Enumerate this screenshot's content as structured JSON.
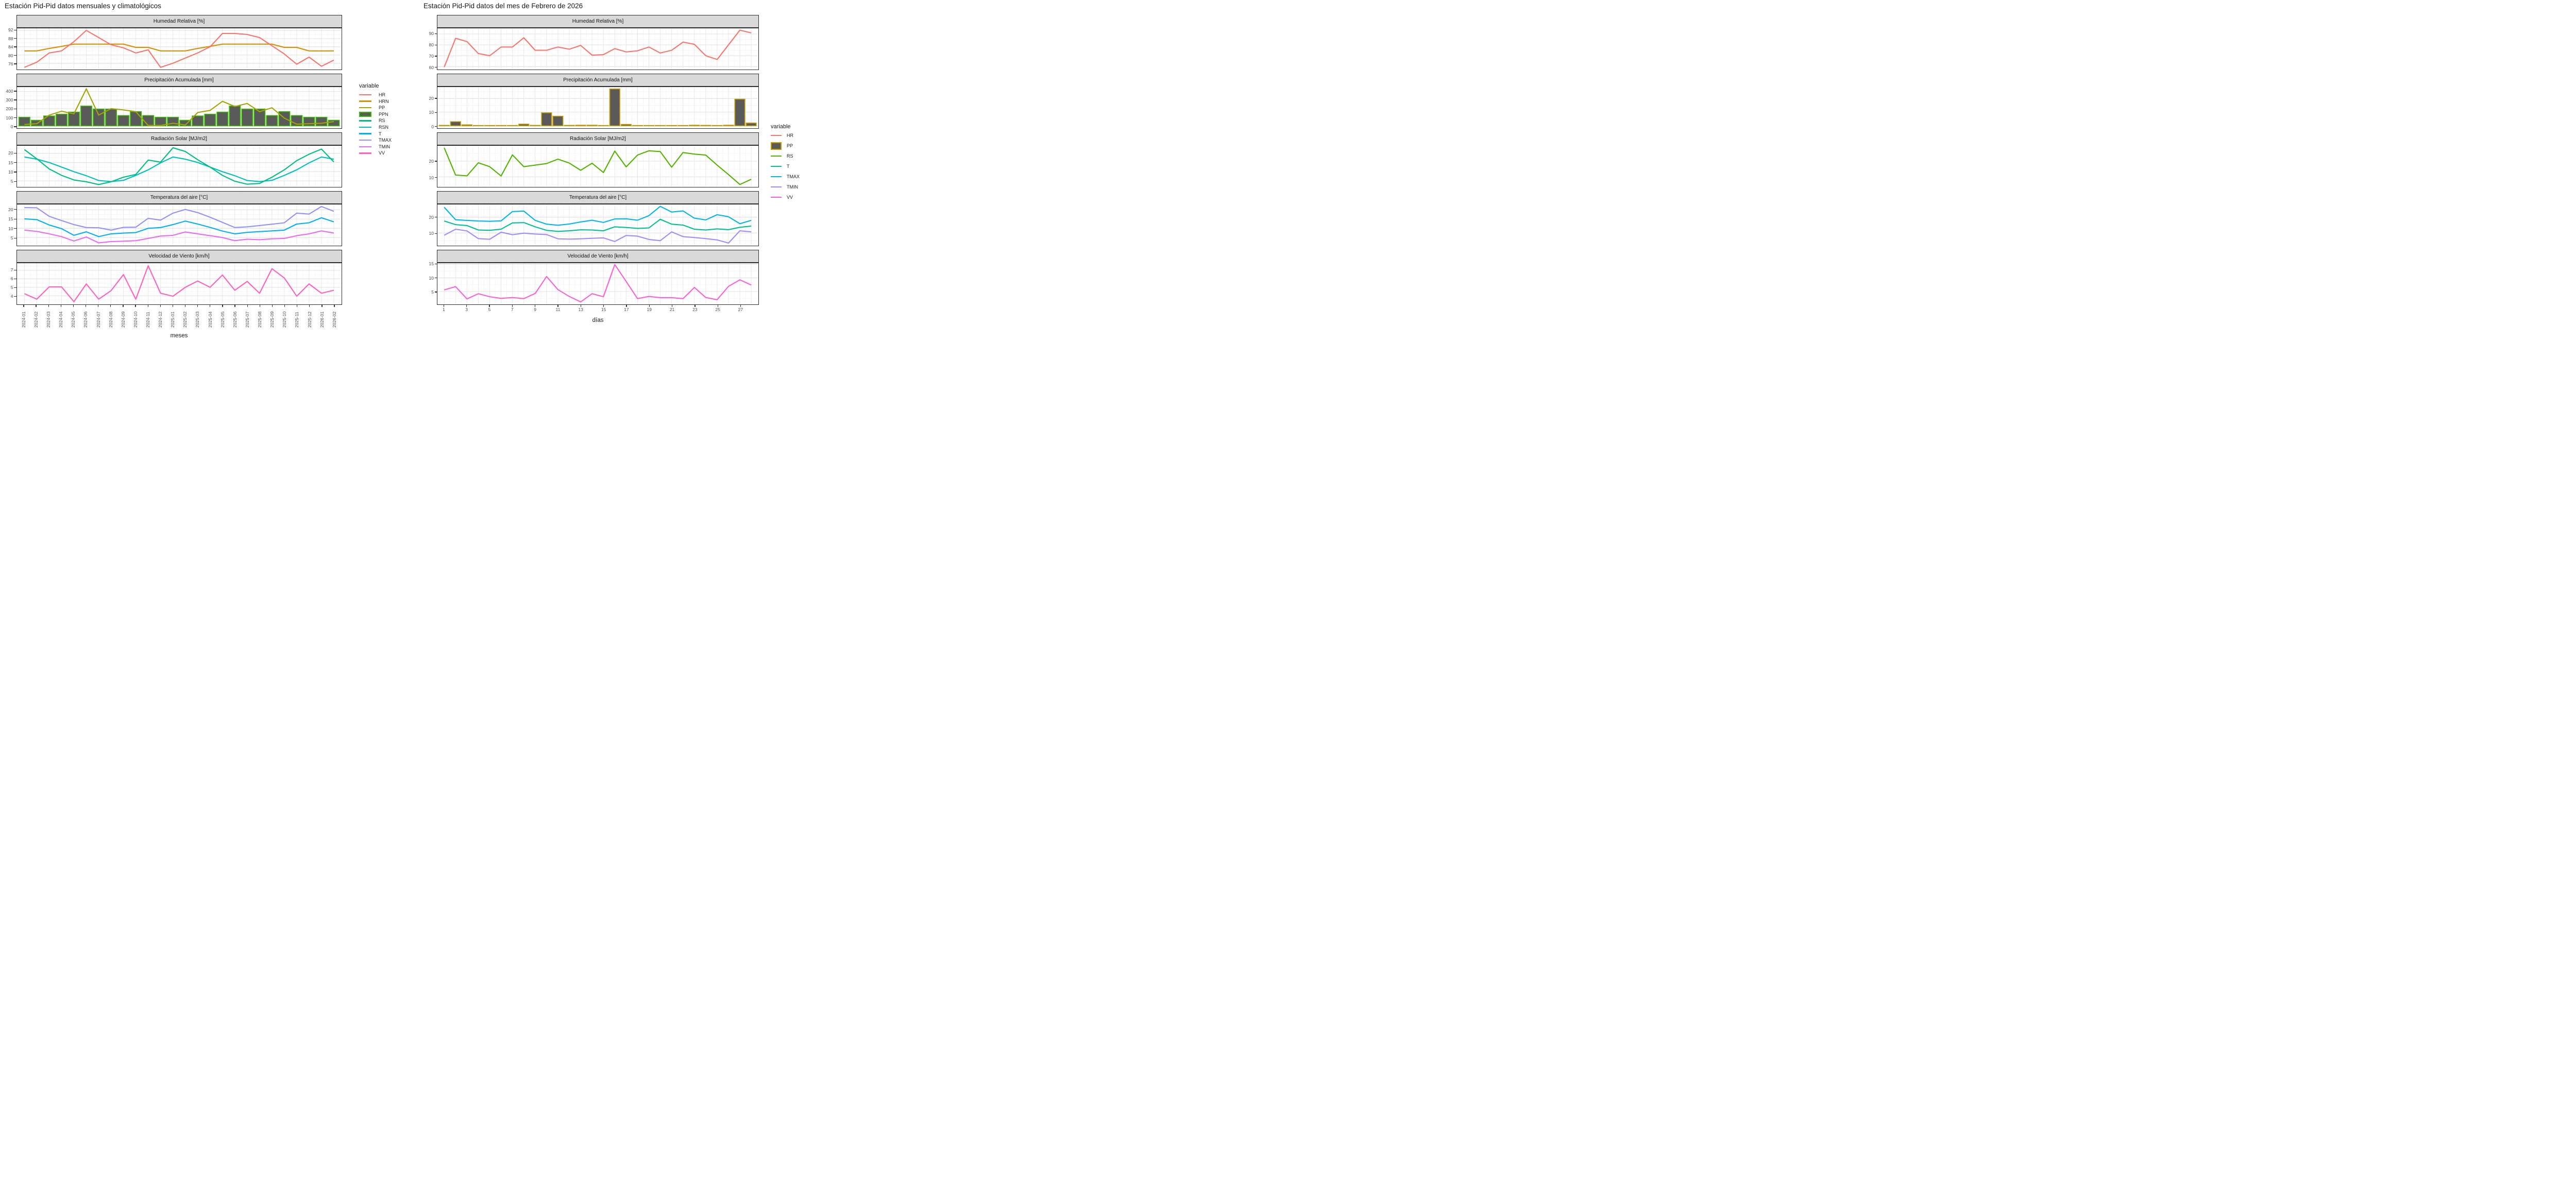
{
  "chart_data": [
    {
      "id": "monthly-climatological",
      "type": "multi-panel line+bar",
      "title": "Estación Pid-Pid datos mensuales y climatológicos",
      "x_axis": {
        "title": "meses",
        "rotated_labels": true,
        "tick_every": 1,
        "categories": [
          "2024-01",
          "2024-02",
          "2024-03",
          "2024-04",
          "2024-05",
          "2024-06",
          "2024-07",
          "2024-08",
          "2024-09",
          "2024-10",
          "2024-11",
          "2024-12",
          "2025-01",
          "2025-02",
          "2025-03",
          "2025-04",
          "2025-05",
          "2025-06",
          "2025-07",
          "2025-08",
          "2025-09",
          "2025-10",
          "2025-11",
          "2025-12",
          "2026-01",
          "2026-02"
        ]
      },
      "legend": {
        "title": "variable",
        "items": [
          {
            "label": "HR",
            "swatch": "line",
            "color": "#F8766D"
          },
          {
            "label": "HRN",
            "swatch": "line",
            "color": "#D89000"
          },
          {
            "label": "PP",
            "swatch": "line",
            "color": "#A3A500"
          },
          {
            "label": "PPN",
            "swatch": "box",
            "color": "#39B600",
            "fill": "#5a5a5a"
          },
          {
            "label": "RS",
            "swatch": "line",
            "color": "#00BF7D"
          },
          {
            "label": "RSN",
            "swatch": "line",
            "color": "#00BFC4"
          },
          {
            "label": "T",
            "swatch": "line",
            "color": "#00B0F6"
          },
          {
            "label": "TMAX",
            "swatch": "line",
            "color": "#9590FF"
          },
          {
            "label": "TMIN",
            "swatch": "line",
            "color": "#E76BF3"
          },
          {
            "label": "VV",
            "swatch": "line",
            "color": "#FF62BC"
          }
        ]
      },
      "series": {
        "HR": {
          "type": "line",
          "color": "#F8766D",
          "values": [
            74,
            76.5,
            81,
            82,
            86.5,
            92,
            88.5,
            85,
            83.5,
            81,
            82.5,
            74,
            76,
            78.5,
            81,
            84,
            90.5,
            90.5,
            90,
            88.5,
            84.5,
            80.5,
            75.5,
            79,
            74.5,
            77.5
          ]
        },
        "HRN": {
          "type": "line",
          "color": "#D89000",
          "values": [
            82,
            82,
            83.2,
            84.2,
            85.3,
            85.3,
            85.3,
            85.3,
            85.3,
            83.7,
            83.7,
            82,
            82,
            82,
            83.2,
            84.2,
            85.3,
            85.3,
            85.3,
            85.3,
            85.3,
            83.7,
            83.7,
            82,
            82,
            82
          ]
        },
        "PP": {
          "type": "line",
          "color": "#A3A500",
          "values": [
            15,
            25,
            125,
            170,
            140,
            430,
            125,
            200,
            185,
            165,
            5,
            5,
            30,
            10,
            155,
            180,
            285,
            225,
            260,
            165,
            210,
            90,
            20,
            25,
            30,
            50
          ]
        },
        "PPN": {
          "type": "bar",
          "color": "#39B600",
          "fill": "#5a5a5a",
          "values": [
            100,
            65,
            115,
            135,
            160,
            230,
            195,
            195,
            120,
            165,
            120,
            100,
            100,
            65,
            115,
            135,
            160,
            230,
            195,
            195,
            120,
            165,
            120,
            100,
            100,
            65
          ]
        },
        "RS": {
          "type": "line",
          "color": "#00BF7D",
          "values": [
            22,
            17,
            11.5,
            8,
            5.5,
            4.5,
            3,
            4.5,
            7,
            8.5,
            16.3,
            15.2,
            23,
            21,
            16.5,
            12.5,
            8,
            4.8,
            3.2,
            3.6,
            7,
            11,
            16,
            19.5,
            22.3,
            15.3
          ]
        },
        "RSN": {
          "type": "line",
          "color": "#00BFC4",
          "values": [
            18,
            16.8,
            15,
            12.5,
            10,
            7.8,
            5.2,
            4.6,
            5.3,
            8,
            11,
            14.8,
            18,
            16.8,
            15,
            12.5,
            10,
            7.8,
            5.2,
            4.6,
            5.3,
            8,
            11,
            14.8,
            18,
            16.8
          ]
        },
        "T": {
          "type": "line",
          "color": "#00B0F6",
          "values": [
            15.1,
            14.7,
            11.8,
            9.8,
            6.2,
            8.1,
            5.5,
            7,
            7.4,
            7.7,
            10,
            10.4,
            12,
            13.9,
            12.3,
            10.5,
            8.5,
            7,
            7.8,
            8.2,
            8.6,
            9,
            12.3,
            13,
            15.7,
            13.5
          ]
        },
        "TMAX": {
          "type": "line",
          "color": "#9590FF",
          "values": [
            21.2,
            21.1,
            16.5,
            14.2,
            12,
            10.4,
            10.3,
            9,
            10.5,
            10.6,
            15.4,
            14.4,
            18.2,
            20.2,
            18.5,
            16,
            13.2,
            10.4,
            10.8,
            11.5,
            12.2,
            13,
            18.2,
            17.7,
            21.8,
            19.2
          ]
        },
        "TMIN": {
          "type": "line",
          "color": "#E76BF3",
          "values": [
            9,
            8.3,
            7,
            5.5,
            3.1,
            5.3,
            2.1,
            2.8,
            3,
            3.3,
            4.5,
            5.8,
            6.2,
            8,
            7,
            6,
            5,
            3.3,
            4.1,
            3.8,
            4.3,
            4.5,
            6,
            7,
            8.6,
            7.4
          ]
        },
        "VV": {
          "type": "line",
          "color": "#FF62BC",
          "values": [
            4.25,
            3.6,
            5.05,
            5.05,
            3.3,
            5.4,
            3.6,
            4.6,
            6.5,
            3.6,
            7.55,
            4.3,
            3.95,
            5,
            5.75,
            5,
            6.45,
            4.65,
            5.7,
            4.3,
            7.2,
            6.1,
            3.95,
            5.4,
            4.3,
            4.65
          ]
        }
      },
      "panels": [
        {
          "title": "Humedad Relativa [%]",
          "yticks": [
            76,
            80,
            84,
            88,
            92
          ],
          "ylim": [
            73.2,
            93.0
          ],
          "draw": [
            "HRN",
            "HR"
          ]
        },
        {
          "title": "Precipitación Acumulada [mm]",
          "yticks": [
            0,
            100,
            200,
            300,
            400
          ],
          "ylim": [
            -21,
            451
          ],
          "draw": [
            "PPN",
            "PP"
          ]
        },
        {
          "title": "Radiación Solar [MJ/m2]",
          "yticks": [
            5,
            10,
            15,
            20
          ],
          "ylim": [
            2.0,
            24.1
          ],
          "draw": [
            "RSN",
            "RS"
          ]
        },
        {
          "title": "Temperatura del aire [°C]",
          "yticks": [
            5,
            10,
            15,
            20
          ],
          "ylim": [
            0.9,
            22.9
          ],
          "draw": [
            "TMAX",
            "T",
            "TMIN"
          ]
        },
        {
          "title": "Velocidad de Viento [km/h]",
          "yticks": [
            4,
            5,
            6,
            7
          ],
          "ylim": [
            3.05,
            7.85
          ],
          "draw": [
            "VV"
          ]
        }
      ]
    },
    {
      "id": "daily-february-2026",
      "type": "multi-panel line+bar",
      "title": "Estación Pid-Pid datos del mes de Febrero de 2026",
      "x_axis": {
        "title": "días",
        "rotated_labels": false,
        "tick_every": 2,
        "categories": [
          "1",
          "2",
          "3",
          "4",
          "5",
          "6",
          "7",
          "8",
          "9",
          "10",
          "11",
          "12",
          "13",
          "14",
          "15",
          "16",
          "17",
          "18",
          "19",
          "20",
          "21",
          "22",
          "23",
          "24",
          "25",
          "26",
          "27",
          "28"
        ]
      },
      "legend": {
        "title": "variable",
        "items": [
          {
            "label": "HR",
            "swatch": "line",
            "color": "#F8766D"
          },
          {
            "label": "PP",
            "swatch": "box",
            "color": "#C49A00",
            "fill": "#5a5a5a"
          },
          {
            "label": "RS",
            "swatch": "line",
            "color": "#53B400"
          },
          {
            "label": "T",
            "swatch": "line",
            "color": "#00C094"
          },
          {
            "label": "TMAX",
            "swatch": "line",
            "color": "#00B6EB"
          },
          {
            "label": "TMIN",
            "swatch": "line",
            "color": "#A58AFF"
          },
          {
            "label": "VV",
            "swatch": "line",
            "color": "#FB61D7"
          }
        ]
      },
      "series": {
        "HR": {
          "type": "line",
          "color": "#F8766D",
          "values": [
            59.5,
            86,
            83,
            72,
            70,
            78,
            78,
            86.5,
            75,
            75,
            78,
            76,
            79.5,
            70.5,
            71,
            76.5,
            73.5,
            74.5,
            78,
            72.5,
            75,
            82.5,
            80.5,
            70,
            66.5,
            80,
            93.5,
            91
          ]
        },
        "PP": {
          "type": "bar",
          "color": "#C49A00",
          "fill": "#5a5a5a",
          "values": [
            0.3,
            3,
            0.7,
            0.2,
            0.2,
            0.2,
            0.2,
            1.2,
            0.3,
            9.5,
            7,
            0.3,
            0.4,
            0.4,
            0.2,
            27,
            1,
            0.2,
            0.2,
            0.2,
            0.2,
            0.2,
            0.4,
            0.3,
            0.2,
            0.4,
            19.5,
            2
          ]
        },
        "RS": {
          "type": "line",
          "color": "#53B400",
          "values": [
            28.5,
            11.2,
            10.7,
            19,
            16.5,
            10.6,
            24,
            16.5,
            17.5,
            18.5,
            21.3,
            18.8,
            14.2,
            18.7,
            12.8,
            26.4,
            16.4,
            23.9,
            26.6,
            26.1,
            16.2,
            25.5,
            24.5,
            23.9,
            17.5,
            11.5,
            5.2,
            8.5
          ]
        },
        "T": {
          "type": "line",
          "color": "#00C094",
          "values": [
            17.6,
            15.3,
            14.7,
            11.9,
            11.7,
            12.4,
            16.4,
            16.6,
            13.9,
            11.7,
            11,
            11.4,
            12,
            11.9,
            11.4,
            13.9,
            13.5,
            12.9,
            13.2,
            18.7,
            15.6,
            15,
            12.4,
            11.9,
            12.6,
            12.1,
            13.6,
            14.4
          ]
        },
        "TMAX": {
          "type": "line",
          "color": "#00B6EB",
          "values": [
            26.3,
            18.4,
            18,
            17.6,
            17.4,
            17.7,
            23.6,
            23.9,
            18,
            15.6,
            14.9,
            15.7,
            17,
            18.1,
            16.7,
            18.9,
            19,
            18.1,
            21,
            26.9,
            23.3,
            24,
            19.4,
            18.3,
            21.6,
            20.3,
            15.9,
            18
          ]
        },
        "TMIN": {
          "type": "line",
          "color": "#A58AFF",
          "values": [
            8.6,
            12.4,
            11.3,
            6.4,
            6,
            10.5,
            8.9,
            9.9,
            9.3,
            9,
            6.3,
            6.1,
            6.3,
            6.6,
            6.9,
            4.6,
            8.4,
            8,
            5.9,
            5.1,
            10.7,
            7.7,
            7.1,
            6.4,
            5.6,
            3.6,
            11.4,
            10.7
          ]
        },
        "VV": {
          "type": "line",
          "color": "#FB61D7",
          "values": [
            5.6,
            6.8,
            2.3,
            4.2,
            3.1,
            2.5,
            2.8,
            2.4,
            4.3,
            10.5,
            5.7,
            3.2,
            1.2,
            4.2,
            3.1,
            14.9,
            8.7,
            2.4,
            3.2,
            2.75,
            2.75,
            2.4,
            6.5,
            2.8,
            2,
            6.9,
            9.3,
            7.4
          ]
        }
      },
      "panels": [
        {
          "title": "Humedad Relativa [%]",
          "yticks": [
            60,
            70,
            80,
            90
          ],
          "ylim": [
            57.8,
            95.2
          ],
          "draw": [
            "HR"
          ]
        },
        {
          "title": "Precipitación Acumulada [mm]",
          "yticks": [
            0,
            10,
            20
          ],
          "ylim": [
            -1.4,
            28.4
          ],
          "draw": [
            "PP"
          ]
        },
        {
          "title": "Radiación Solar [MJ/m2]",
          "yticks": [
            10,
            20
          ],
          "ylim": [
            4.0,
            29.8
          ],
          "draw": [
            "RS"
          ]
        },
        {
          "title": "Temperatura del aire [°C]",
          "yticks": [
            10,
            20
          ],
          "ylim": [
            2.3,
            28.1
          ],
          "draw": [
            "TMAX",
            "T",
            "TMIN"
          ]
        },
        {
          "title": "Velocidad de Viento [km/h]",
          "yticks": [
            5,
            10,
            15
          ],
          "ylim": [
            0.5,
            15.4
          ],
          "draw": [
            "VV"
          ]
        }
      ]
    }
  ]
}
